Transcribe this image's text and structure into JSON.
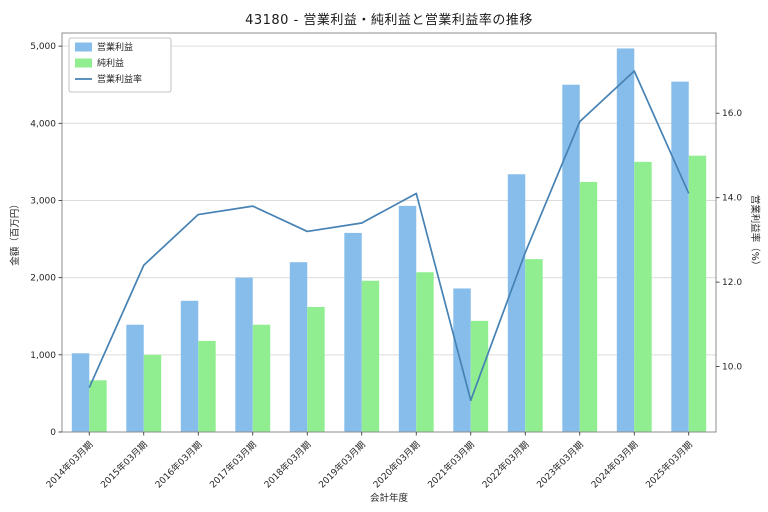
{
  "chart_data": {
    "type": "bar+line",
    "title": "43180 - 営業利益・純利益と営業利益率の推移",
    "xlabel": "会計年度",
    "ylabel_left": "金額（百万円）",
    "ylabel_right": "営業利益率（%）",
    "categories": [
      "2014年03月期",
      "2015年03月期",
      "2016年03月期",
      "2017年03月期",
      "2018年03月期",
      "2019年03月期",
      "2020年03月期",
      "2021年03月期",
      "2022年03月期",
      "2023年03月期",
      "2024年03月期",
      "2025年03月期"
    ],
    "series": [
      {
        "name": "営業利益",
        "type": "bar",
        "axis": "left",
        "color": "#87bdeb",
        "values": [
          1020,
          1390,
          1700,
          2000,
          2200,
          2580,
          2930,
          1860,
          3340,
          4500,
          4970,
          4540
        ]
      },
      {
        "name": "純利益",
        "type": "bar",
        "axis": "left",
        "color": "#90ee90",
        "values": [
          670,
          1000,
          1180,
          1390,
          1620,
          1960,
          2070,
          1440,
          2240,
          3240,
          3500,
          3580
        ]
      },
      {
        "name": "営業利益率",
        "type": "line",
        "axis": "right",
        "color": "#4682b4",
        "values": [
          9.5,
          12.4,
          13.6,
          13.8,
          13.2,
          13.4,
          14.1,
          9.2,
          12.7,
          15.8,
          17.0,
          14.1
        ]
      }
    ],
    "y_left": {
      "lim": [
        0,
        5170
      ],
      "ticks": [
        0,
        1000,
        2000,
        3000,
        4000,
        5000
      ],
      "tick_labels": [
        "0",
        "1,000",
        "2,000",
        "3,000",
        "4,000",
        "5,000"
      ]
    },
    "y_right": {
      "lim": [
        8.45,
        17.9
      ],
      "ticks": [
        10.0,
        12.0,
        14.0,
        16.0
      ],
      "tick_labels": [
        "10.0",
        "12.0",
        "14.0",
        "16.0"
      ]
    },
    "grid": true,
    "legend_position": "upper-left",
    "colors": {
      "grid": "#dcdcdc",
      "spine": "#8c8c8c",
      "tick_text": "#262626",
      "legend_border": "#b3b3b3",
      "background": "#ffffff"
    }
  }
}
